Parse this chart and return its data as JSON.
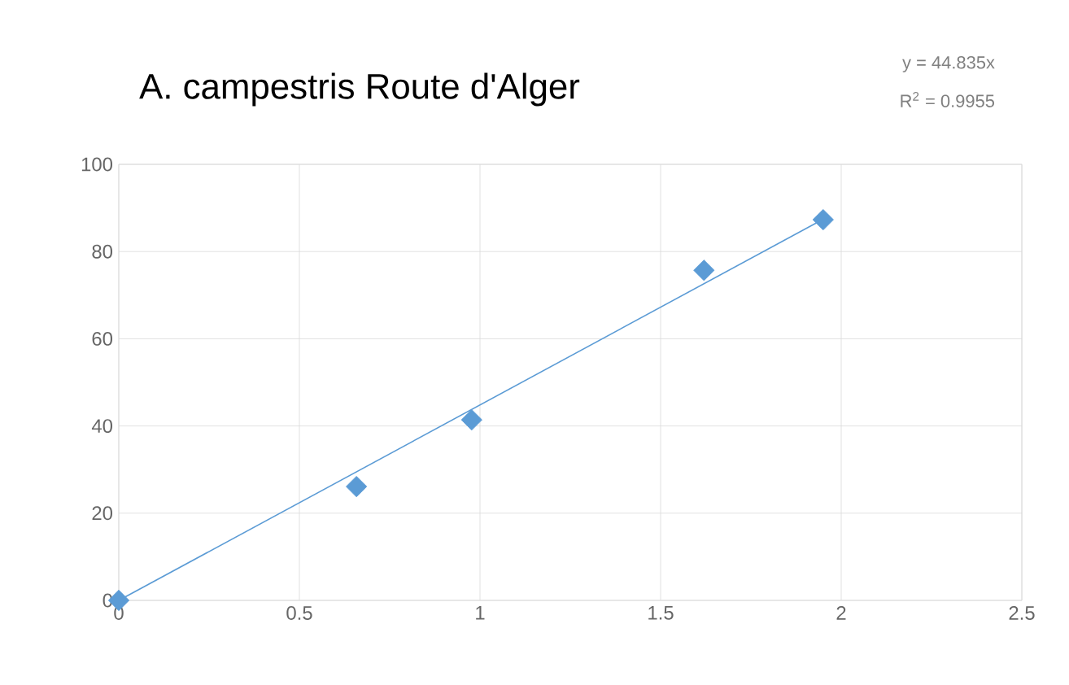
{
  "chart_data": {
    "type": "scatter",
    "title": "A. campestris Route d'Alger",
    "annotations": [
      "y = 44.835x",
      "R$^{2}$ = 0.9955"
    ],
    "series": [
      {
        "color": "#5b9bd5",
        "marker": "diamond",
        "x": [
          0,
          0.658,
          0.977,
          1.62,
          1.95
        ],
        "values": [
          0,
          26.1,
          41.4,
          75.7,
          87.3
        ]
      },
      {
        "type": "line",
        "color": "#5b9bd5",
        "marker": "none",
        "x": [
          0,
          1.95
        ],
        "values": [
          0,
          87.4
        ]
      }
    ],
    "xlim": [
      0,
      2.5
    ],
    "xticks": [
      0,
      0.5,
      1,
      1.5,
      2,
      2.5
    ],
    "ylim": [
      0,
      100
    ],
    "yticks": [
      0,
      20,
      40,
      60,
      80,
      100
    ],
    "grid": true
  }
}
